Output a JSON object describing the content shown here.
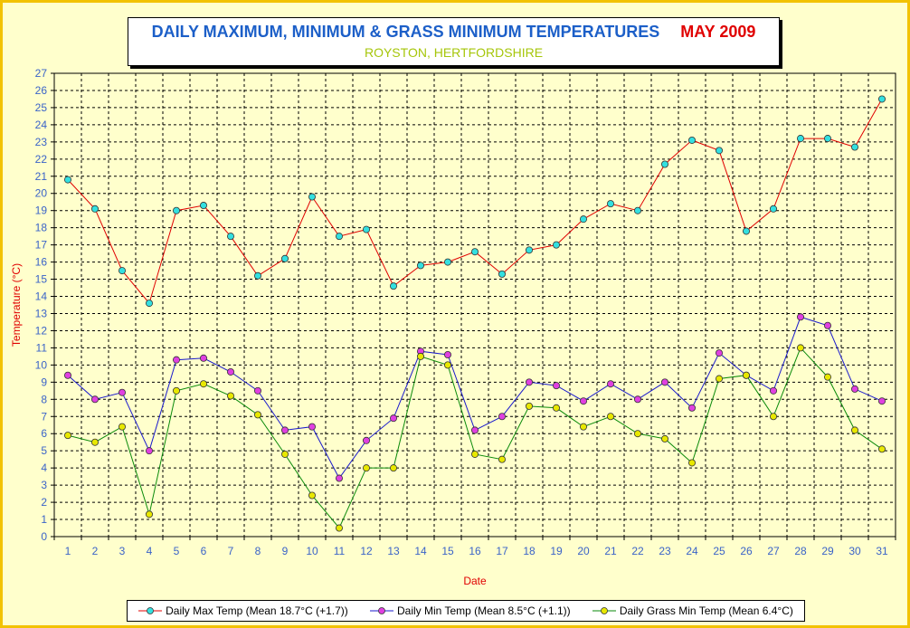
{
  "title": {
    "main": "DAILY MAXIMUM, MINIMUM & GRASS MINIMUM TEMPERATURES",
    "month": "MAY 2009",
    "subtitle": "ROYSTON, HERTFORDSHIRE"
  },
  "colors": {
    "frame": "#f2c200",
    "plot_background": "#ffffcc",
    "title_blue": "#1c5fc8",
    "title_red": "#e00000",
    "subtitle_green": "#a6c60a",
    "axis_label": "#e00000",
    "tick_label": "#3a63c8"
  },
  "chart_data": {
    "type": "line",
    "xlabel": "Date",
    "ylabel": "Temperature (°C)",
    "ylim": [
      0,
      27
    ],
    "yticks": [
      0,
      1,
      2,
      3,
      4,
      5,
      6,
      7,
      8,
      9,
      10,
      11,
      12,
      13,
      14,
      15,
      16,
      17,
      18,
      19,
      20,
      21,
      22,
      23,
      24,
      25,
      26,
      27
    ],
    "x": [
      1,
      2,
      3,
      4,
      5,
      6,
      7,
      8,
      9,
      10,
      11,
      12,
      13,
      14,
      15,
      16,
      17,
      18,
      19,
      20,
      21,
      22,
      23,
      24,
      25,
      26,
      27,
      28,
      29,
      30,
      31
    ],
    "grid": true,
    "legend_position": "bottom",
    "series": [
      {
        "name": "Daily Max Temp (Mean 18.7°C (+1.7))",
        "line_color": "#e00000",
        "marker_color": "#33e0e0",
        "values": [
          20.8,
          19.1,
          15.5,
          13.6,
          19.0,
          19.3,
          17.5,
          15.2,
          16.2,
          19.8,
          17.5,
          17.9,
          14.6,
          15.8,
          16.0,
          16.6,
          15.3,
          16.7,
          17.0,
          18.5,
          19.4,
          19.0,
          21.7,
          23.1,
          22.5,
          17.8,
          19.1,
          23.2,
          23.2,
          22.7,
          25.5
        ]
      },
      {
        "name": "Daily Min Temp (Mean 8.5°C (+1.1))",
        "line_color": "#1a1acc",
        "marker_color": "#e040e0",
        "values": [
          9.4,
          8.0,
          8.4,
          5.0,
          10.3,
          10.4,
          9.6,
          8.5,
          6.2,
          6.4,
          3.4,
          5.6,
          6.9,
          10.8,
          10.6,
          6.2,
          7.0,
          9.0,
          8.8,
          7.9,
          8.9,
          8.0,
          9.0,
          7.5,
          10.7,
          9.4,
          8.5,
          12.8,
          12.3,
          8.6,
          7.9
        ]
      },
      {
        "name": "Daily Grass Min Temp (Mean 6.4°C)",
        "line_color": "#0a8a0a",
        "marker_color": "#e8e800",
        "values": [
          5.9,
          5.5,
          6.4,
          1.3,
          8.5,
          8.9,
          8.2,
          7.1,
          4.8,
          2.4,
          0.5,
          4.0,
          4.0,
          10.5,
          10.0,
          4.8,
          4.5,
          7.6,
          7.5,
          6.4,
          7.0,
          6.0,
          5.7,
          4.3,
          9.2,
          9.4,
          7.0,
          11.0,
          9.3,
          6.2,
          5.1
        ]
      }
    ]
  }
}
